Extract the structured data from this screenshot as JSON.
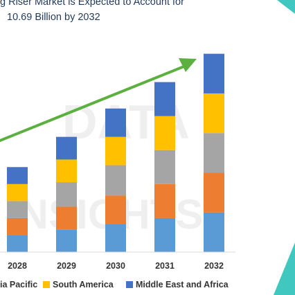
{
  "title": {
    "line1": "g Riser Market is Expected to Account for",
    "line2": "10.69 Billion by 2032"
  },
  "colors": {
    "asia_pacific": "#5b9bd5",
    "europe": "#ed7d31",
    "north_america": "#a5a5a5",
    "south_america": "#ffc000",
    "mea": "#4472c4",
    "arrow": "#5cb040",
    "teal": "#40c8c0",
    "axis": "#d9d9d9",
    "title_text": "#1f3a5a"
  },
  "legend": [
    {
      "label": "ia Pacific",
      "color": "#5b9bd5"
    },
    {
      "label": "South America",
      "color": "#ffc000"
    },
    {
      "label": "Middle East and Africa",
      "color": "#4472c4"
    }
  ],
  "chart_data": {
    "type": "bar",
    "stacked": true,
    "categories": [
      "2028",
      "2029",
      "2030",
      "2031",
      "2032"
    ],
    "series": [
      {
        "name": "Asia Pacific",
        "values": [
          0.9,
          1.2,
          1.5,
          1.8,
          2.1
        ]
      },
      {
        "values": [
          0.9,
          1.2,
          1.5,
          1.8,
          2.1
        ]
      },
      {
        "values": [
          0.9,
          1.3,
          1.6,
          1.8,
          2.1
        ]
      },
      {
        "name": "South America",
        "values": [
          0.9,
          1.2,
          1.5,
          1.8,
          2.1
        ]
      },
      {
        "name": "Middle East and Africa",
        "values": [
          0.9,
          1.2,
          1.5,
          1.8,
          2.1
        ]
      }
    ],
    "trend_arrow": true,
    "ylim": [
      0,
      11
    ]
  }
}
